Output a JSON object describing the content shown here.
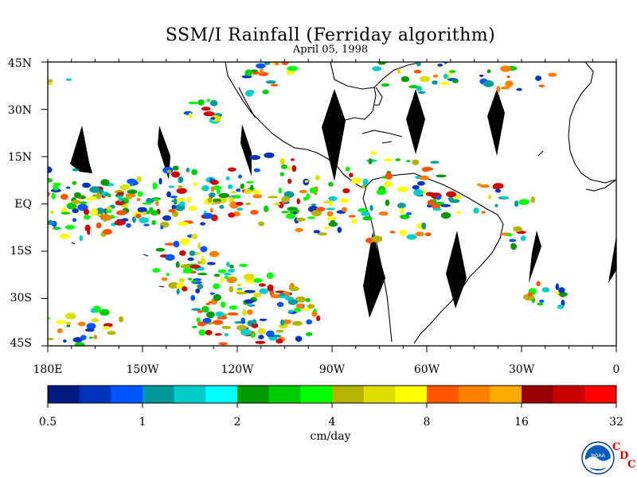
{
  "title": "SSM/I Rainfall (Ferriday algorithm)",
  "date": "April 05, 1998",
  "units": "cm/day",
  "lat_labels": [
    "45N",
    "30N",
    "15N",
    "EQ",
    "15S",
    "30S",
    "45S"
  ],
  "lon_labels": [
    "180E",
    "150W",
    "120W",
    "90W",
    "60W",
    "30W",
    "0"
  ],
  "colorbar": {
    "colors": [
      "#001a80",
      "#0033bb",
      "#0055ff",
      "#00999b",
      "#00cccc",
      "#00ffff",
      "#009900",
      "#00cc00",
      "#00ff00",
      "#b3b300",
      "#dddd00",
      "#ffff00",
      "#ff5500",
      "#ff8000",
      "#ffaa00",
      "#990000",
      "#cc0000",
      "#ff0000"
    ],
    "tick_labels": [
      "0.5",
      "1",
      "2",
      "4",
      "8",
      "16",
      "32"
    ]
  },
  "logo": {
    "name": "noaa-logo",
    "text": "NOAA"
  },
  "credit": [
    "C",
    "D",
    "C"
  ]
}
